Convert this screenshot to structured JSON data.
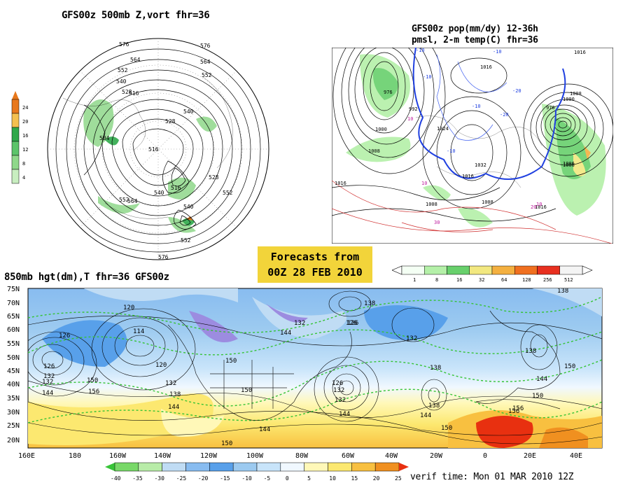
{
  "panels": {
    "top_left_title": "GFS00z  500mb Z,vort   fhr=36",
    "top_right_title_line1": "GFS00z pop(mm/dy) 12-36h",
    "top_right_title_line2": "pmsl, 2-m temp(C)  fhr=36",
    "bottom_title": "850mb hgt(dm),T  fhr=36 GFS00z"
  },
  "banner": {
    "line1": "Forecasts from",
    "line2": "00Z 28 FEB 2010"
  },
  "verif_time": "verif time: Mon 01 MAR 2010 12Z",
  "vort_colorbar": {
    "labels": [
      "24",
      "20",
      "16",
      "12",
      "8",
      "4"
    ],
    "colors": [
      "#e8781c",
      "#f4c050",
      "#2fa84a",
      "#5cc46a",
      "#8fd88a",
      "#c8eec0"
    ]
  },
  "pop_colorbar": {
    "labels": [
      "1",
      "8",
      "16",
      "32",
      "64",
      "128",
      "256",
      "512"
    ],
    "colors": [
      "#f4fff4",
      "#b4f0a8",
      "#68d06c",
      "#f2e880",
      "#f4b040",
      "#f07020",
      "#e83020",
      "#f4f4f4"
    ]
  },
  "temp_colorbar": {
    "labels": [
      "-40",
      "-35",
      "-30",
      "-25",
      "-20",
      "-15",
      "-10",
      "-5",
      "0",
      "5",
      "10",
      "15",
      "20",
      "25"
    ],
    "colors": [
      "#38c438",
      "#78d868",
      "#b8eca8",
      "#c0dcf4",
      "#88bcf0",
      "#58a0ea",
      "#9ccaf0",
      "#c8e4fa",
      "#f0f8ff",
      "#fff8b8",
      "#fce870",
      "#f8c040",
      "#f09020",
      "#e83010"
    ]
  },
  "lat_labels": [
    "75N",
    "70N",
    "65N",
    "60N",
    "55N",
    "50N",
    "45N",
    "40N",
    "35N",
    "30N",
    "25N",
    "20N"
  ],
  "lon_labels": [
    "160E",
    "180",
    "160W",
    "140W",
    "120W",
    "100W",
    "80W",
    "60W",
    "40W",
    "20W",
    "0",
    "20E",
    "40E"
  ],
  "contour_labels_500": [
    "576",
    "564",
    "552",
    "540",
    "528",
    "516",
    "504",
    "516",
    "528",
    "540",
    "552",
    "564",
    "576",
    "552",
    "540",
    "516",
    "528",
    "552",
    "540",
    "564",
    "552",
    "576"
  ],
  "contour_labels_850": [
    "120",
    "126",
    "114",
    "126",
    "132",
    "120",
    "132",
    "138",
    "144",
    "150",
    "156",
    "132",
    "144",
    "150",
    "126",
    "132",
    "138",
    "144",
    "132",
    "138",
    "144",
    "150",
    "156",
    "126",
    "138",
    "132",
    "126",
    "132",
    "138",
    "144",
    "150",
    "150",
    "156",
    "144",
    "144",
    "150",
    "150",
    "138"
  ],
  "pmsl_labels": [
    "1016",
    "992",
    "976",
    "1000",
    "1008",
    "1024",
    "1032",
    "1016",
    "1008",
    "1016",
    "1008",
    "1016",
    "1000",
    "1008",
    "976",
    "1016",
    "1008",
    "1006"
  ],
  "temp_labels_2m": [
    "-10",
    "-20",
    "-10",
    "10",
    "10",
    "-10",
    "20",
    "-10",
    "10",
    "30",
    "-20",
    "-10"
  ]
}
